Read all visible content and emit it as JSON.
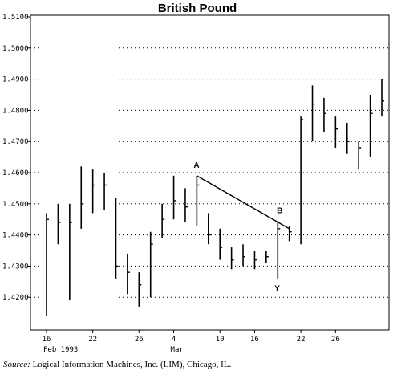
{
  "chart_data": {
    "type": "ohlc",
    "title": "British Pound",
    "ylim": [
      1.41,
      1.51
    ],
    "y_ticks": [
      {
        "value": 1.42,
        "label": "1.4200"
      },
      {
        "value": 1.43,
        "label": "1.4300"
      },
      {
        "value": 1.44,
        "label": "1.4400"
      },
      {
        "value": 1.45,
        "label": "1.4500"
      },
      {
        "value": 1.46,
        "label": "1.4600"
      },
      {
        "value": 1.47,
        "label": "1.4700"
      },
      {
        "value": 1.48,
        "label": "1.4800"
      },
      {
        "value": 1.49,
        "label": "1.4900"
      },
      {
        "value": 1.5,
        "label": "1.5000"
      },
      {
        "value": 1.51,
        "label": "1.5100"
      }
    ],
    "xlim": [
      0,
      30
    ],
    "x_ticks": [
      {
        "idx": 1,
        "label": "16"
      },
      {
        "idx": 5,
        "label": "22"
      },
      {
        "idx": 9,
        "label": "26"
      },
      {
        "idx": 12,
        "label": "4"
      },
      {
        "idx": 16,
        "label": "10"
      },
      {
        "idx": 19,
        "label": "16"
      },
      {
        "idx": 23,
        "label": "22"
      },
      {
        "idx": 26,
        "label": "26"
      }
    ],
    "x_sublabels": [
      {
        "idx": 1,
        "label": "Feb 1993"
      },
      {
        "idx": 12,
        "label": "Mar"
      }
    ],
    "grid": "horizontal dotted",
    "bars": [
      {
        "x": 1,
        "high": 1.447,
        "low": 1.414,
        "close": 1.445
      },
      {
        "x": 2,
        "high": 1.45,
        "low": 1.437,
        "close": 1.444
      },
      {
        "x": 3,
        "high": 1.45,
        "low": 1.419,
        "close": 1.444
      },
      {
        "x": 4,
        "high": 1.462,
        "low": 1.442,
        "close": 1.45
      },
      {
        "x": 5,
        "high": 1.461,
        "low": 1.447,
        "close": 1.456
      },
      {
        "x": 6,
        "high": 1.46,
        "low": 1.448,
        "close": 1.456
      },
      {
        "x": 7,
        "high": 1.452,
        "low": 1.426,
        "close": 1.43
      },
      {
        "x": 8,
        "high": 1.434,
        "low": 1.421,
        "close": 1.428
      },
      {
        "x": 9,
        "high": 1.428,
        "low": 1.417,
        "close": 1.424
      },
      {
        "x": 10,
        "high": 1.441,
        "low": 1.42,
        "close": 1.437
      },
      {
        "x": 11,
        "high": 1.45,
        "low": 1.439,
        "close": 1.445
      },
      {
        "x": 12,
        "high": 1.459,
        "low": 1.445,
        "close": 1.451
      },
      {
        "x": 13,
        "high": 1.455,
        "low": 1.444,
        "close": 1.449
      },
      {
        "x": 14,
        "high": 1.459,
        "low": 1.443,
        "close": 1.456
      },
      {
        "x": 15,
        "high": 1.447,
        "low": 1.437,
        "close": 1.44
      },
      {
        "x": 16,
        "high": 1.442,
        "low": 1.432,
        "close": 1.436
      },
      {
        "x": 17,
        "high": 1.436,
        "low": 1.429,
        "close": 1.432
      },
      {
        "x": 18,
        "high": 1.437,
        "low": 1.43,
        "close": 1.433
      },
      {
        "x": 19,
        "high": 1.435,
        "low": 1.429,
        "close": 1.432
      },
      {
        "x": 20,
        "high": 1.435,
        "low": 1.431,
        "close": 1.433
      },
      {
        "x": 21,
        "high": 1.444,
        "low": 1.426,
        "close": 1.442
      },
      {
        "x": 22,
        "high": 1.443,
        "low": 1.438,
        "close": 1.441
      },
      {
        "x": 23,
        "high": 1.478,
        "low": 1.437,
        "close": 1.477
      },
      {
        "x": 24,
        "high": 1.488,
        "low": 1.47,
        "close": 1.482
      },
      {
        "x": 25,
        "high": 1.484,
        "low": 1.473,
        "close": 1.479
      },
      {
        "x": 26,
        "high": 1.478,
        "low": 1.468,
        "close": 1.474
      },
      {
        "x": 27,
        "high": 1.476,
        "low": 1.466,
        "close": 1.47
      },
      {
        "x": 28,
        "high": 1.47,
        "low": 1.461,
        "close": 1.468
      },
      {
        "x": 29,
        "high": 1.485,
        "low": 1.465,
        "close": 1.479
      },
      {
        "x": 30,
        "high": 1.49,
        "low": 1.478,
        "close": 1.483
      }
    ],
    "trendline": {
      "from": {
        "x": 14,
        "y": 1.459
      },
      "to": {
        "x": 22,
        "y": 1.442
      }
    },
    "annotations": [
      {
        "label": "A",
        "x": 14,
        "y": 1.4615
      },
      {
        "label": "B",
        "x": 21.2,
        "y": 1.447
      },
      {
        "label": "Y",
        "x": 21,
        "y": 1.422
      }
    ]
  },
  "source": {
    "label": "Source:",
    "text": "Logical Information Machines, Inc. (LIM), Chicago, IL."
  }
}
